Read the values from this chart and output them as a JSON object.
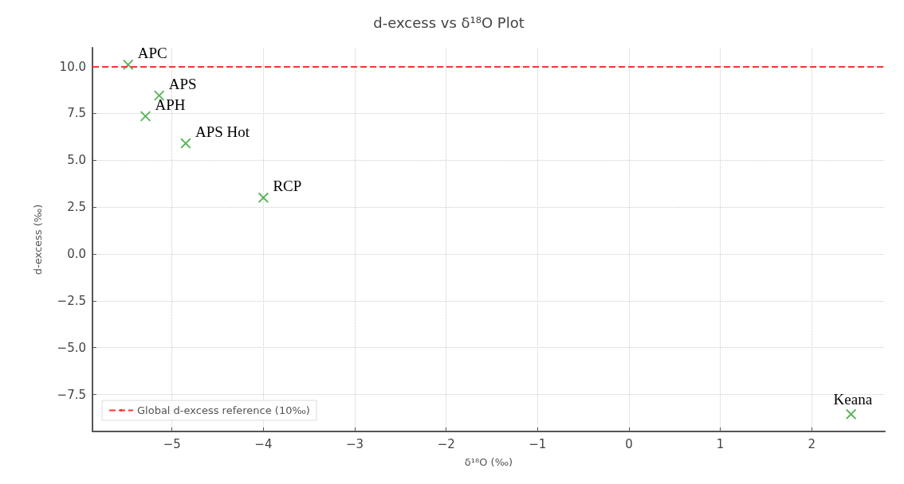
{
  "chart_data": {
    "type": "scatter",
    "title": "d-excess vs δ¹⁸O Plot",
    "xlabel": "δ¹⁸O (‰)",
    "ylabel": "d-excess (‰)",
    "x": [
      -5.48,
      -5.14,
      -5.29,
      -4.85,
      -4.0,
      2.43
    ],
    "series": [
      {
        "color": "#2ca02c",
        "values": [
          10.1,
          8.45,
          7.35,
          5.9,
          3.0,
          -8.55
        ]
      }
    ],
    "marker": "cross",
    "annotations": [
      {
        "text": "APC",
        "x": -5.48,
        "y": 10.1
      },
      {
        "text": "APS",
        "x": -5.14,
        "y": 8.45
      },
      {
        "text": "APH",
        "x": -5.29,
        "y": 7.35
      },
      {
        "text": "APS Hot",
        "x": -4.85,
        "y": 5.9
      },
      {
        "text": "RCP",
        "x": -4.0,
        "y": 3.0
      },
      {
        "text": "Keana",
        "x": 2.43,
        "y": -8.55
      }
    ],
    "ref_lines": [
      {
        "axis": "y",
        "value": 10,
        "label": "Global d-excess reference (10‰)",
        "color": "#ff3333",
        "line_style": "dashed"
      }
    ],
    "xlim": [
      -5.87,
      2.8
    ],
    "xticks": [
      -5,
      -4,
      -3,
      -2,
      -1,
      0,
      1,
      2
    ],
    "ylim": [
      -9.47,
      11.0
    ],
    "yticks": [
      {
        "value": -7.5,
        "label": "−7.5"
      },
      {
        "value": -5,
        "label": "−5.0"
      },
      {
        "value": -2.5,
        "label": "−2.5"
      },
      {
        "value": 0,
        "label": "0.0"
      },
      {
        "value": 2.5,
        "label": "2.5"
      },
      {
        "value": 5,
        "label": "5.0"
      },
      {
        "value": 7.5,
        "label": "7.5"
      },
      {
        "value": 10,
        "label": "10.0"
      }
    ],
    "grid": true,
    "legend": "bottom left"
  }
}
